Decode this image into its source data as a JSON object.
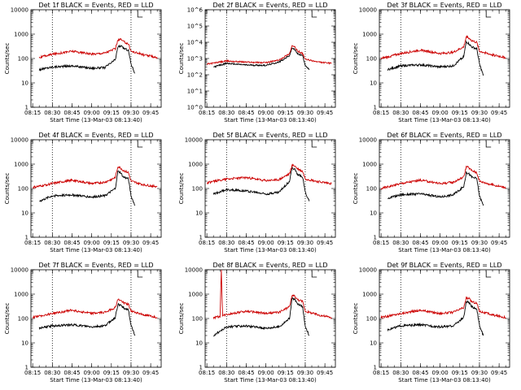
{
  "chart_data": [
    {
      "type": "line",
      "title": "Det 1f  BLACK = Events, RED = LLD",
      "xlabel": "",
      "ylabel": "Counts/sec",
      "yscale": "log",
      "ylim": [
        1,
        10000
      ],
      "yticks": [
        "1",
        "10",
        "100",
        "1000",
        "10000"
      ],
      "xticks": [
        "08:15",
        "08:30",
        "08:45",
        "09:00",
        "09:15",
        "09:30",
        "09:45"
      ],
      "xlim": [
        "08:13:40",
        "09:53"
      ],
      "markers": [
        "08:30",
        "09:30"
      ],
      "series": [
        {
          "color": "#000000",
          "x": [
            "08:20",
            "08:30",
            "08:45",
            "09:00",
            "09:10",
            "09:18",
            "09:20",
            "09:22",
            "09:24",
            "09:28",
            "09:30",
            "09:33"
          ],
          "values": [
            35,
            45,
            50,
            40,
            42,
            90,
            300,
            330,
            270,
            220,
            60,
            25
          ]
        },
        {
          "color": "#cc0000",
          "x": [
            "08:20",
            "08:30",
            "08:45",
            "09:00",
            "09:10",
            "09:18",
            "09:20",
            "09:22",
            "09:24",
            "09:28",
            "09:30",
            "09:40",
            "09:50"
          ],
          "values": [
            110,
            150,
            200,
            150,
            170,
            250,
            580,
            620,
            500,
            400,
            200,
            140,
            110
          ]
        }
      ]
    },
    {
      "type": "line",
      "title": "Det 2f  BLACK = Events, RED = LLD",
      "xlabel": "",
      "ylabel": "Counts/sec",
      "yscale": "log",
      "ylim": [
        1,
        1000000
      ],
      "yticks": [
        "10^0",
        "10^1",
        "10^2",
        "10^3",
        "10^4",
        "10^5",
        "10^6"
      ],
      "xticks": [
        "08:15",
        "08:30",
        "08:45",
        "09:00",
        "09:15",
        "09:30",
        "09:45"
      ],
      "xlim": [
        "08:13:40",
        "09:53"
      ],
      "markers": [
        "08:30",
        "09:30"
      ],
      "series": [
        {
          "color": "#000000",
          "x": [
            "08:20",
            "08:30",
            "08:45",
            "09:00",
            "09:10",
            "09:18",
            "09:20",
            "09:22",
            "09:24",
            "09:28",
            "09:30",
            "09:33"
          ],
          "values": [
            300,
            500,
            400,
            380,
            600,
            1500,
            4500,
            3500,
            2000,
            1500,
            400,
            200
          ]
        },
        {
          "color": "#cc0000",
          "x": [
            "08:15",
            "08:30",
            "08:45",
            "09:00",
            "09:10",
            "09:18",
            "09:20",
            "09:22",
            "09:24",
            "09:28",
            "09:30",
            "09:40",
            "09:50"
          ],
          "values": [
            450,
            700,
            600,
            550,
            800,
            2000,
            6000,
            5000,
            3000,
            2000,
            900,
            600,
            500
          ]
        }
      ]
    },
    {
      "type": "line",
      "title": "Det 3f  BLACK = Events, RED = LLD",
      "xlabel": "",
      "ylabel": "Counts/sec",
      "yscale": "log",
      "ylim": [
        1,
        10000
      ],
      "yticks": [
        "1",
        "10",
        "100",
        "1000",
        "10000"
      ],
      "xticks": [
        "08:15",
        "08:30",
        "08:45",
        "09:00",
        "09:15",
        "09:30",
        "09:45"
      ],
      "xlim": [
        "08:13:40",
        "09:53"
      ],
      "markers": [
        "08:30",
        "09:30"
      ],
      "series": [
        {
          "color": "#000000",
          "x": [
            "08:20",
            "08:30",
            "08:45",
            "09:00",
            "09:10",
            "09:18",
            "09:20",
            "09:22",
            "09:24",
            "09:28",
            "09:30",
            "09:33"
          ],
          "values": [
            35,
            50,
            55,
            45,
            50,
            120,
            500,
            400,
            300,
            250,
            60,
            20
          ]
        },
        {
          "color": "#cc0000",
          "x": [
            "08:15",
            "08:30",
            "08:45",
            "09:00",
            "09:10",
            "09:18",
            "09:20",
            "09:22",
            "09:24",
            "09:28",
            "09:30",
            "09:40",
            "09:50"
          ],
          "values": [
            100,
            160,
            220,
            160,
            180,
            300,
            800,
            700,
            550,
            450,
            200,
            140,
            110
          ]
        }
      ]
    },
    {
      "type": "line",
      "title": "Det 4f  BLACK = Events, RED = LLD",
      "xlabel": "",
      "ylabel": "Counts/sec",
      "yscale": "log",
      "ylim": [
        1,
        10000
      ],
      "yticks": [
        "1",
        "10",
        "100",
        "1000",
        "10000"
      ],
      "xticks": [
        "08:15",
        "08:30",
        "08:45",
        "09:00",
        "09:15",
        "09:30",
        "09:45"
      ],
      "xlim": [
        "08:13:40",
        "09:53"
      ],
      "markers": [
        "08:30",
        "09:30"
      ],
      "series": [
        {
          "color": "#000000",
          "x": [
            "08:20",
            "08:30",
            "08:45",
            "09:00",
            "09:10",
            "09:18",
            "09:20",
            "09:22",
            "09:24",
            "09:28",
            "09:30",
            "09:33"
          ],
          "values": [
            30,
            50,
            55,
            45,
            50,
            100,
            500,
            450,
            300,
            250,
            50,
            20
          ]
        },
        {
          "color": "#cc0000",
          "x": [
            "08:15",
            "08:30",
            "08:45",
            "09:00",
            "09:10",
            "09:18",
            "09:20",
            "09:22",
            "09:24",
            "09:28",
            "09:30",
            "09:40",
            "09:50"
          ],
          "values": [
            110,
            160,
            220,
            160,
            180,
            280,
            800,
            700,
            550,
            450,
            200,
            140,
            120
          ]
        }
      ]
    },
    {
      "type": "line",
      "title": "Det 5f  BLACK = Events, RED = LLD",
      "xlabel": "",
      "ylabel": "Counts/sec",
      "yscale": "log",
      "ylim": [
        1,
        10000
      ],
      "yticks": [
        "1",
        "10",
        "100",
        "1000",
        "10000"
      ],
      "xticks": [
        "08:15",
        "08:30",
        "08:45",
        "09:00",
        "09:15",
        "09:30",
        "09:45"
      ],
      "xlim": [
        "08:13:40",
        "09:53"
      ],
      "markers": [
        "08:30",
        "09:30"
      ],
      "series": [
        {
          "color": "#000000",
          "x": [
            "08:20",
            "08:30",
            "08:45",
            "09:00",
            "09:10",
            "09:18",
            "09:20",
            "09:22",
            "09:24",
            "09:28",
            "09:30",
            "09:33"
          ],
          "values": [
            60,
            90,
            80,
            60,
            70,
            200,
            700,
            600,
            400,
            300,
            70,
            30
          ]
        },
        {
          "color": "#cc0000",
          "x": [
            "08:15",
            "08:30",
            "08:45",
            "09:00",
            "09:10",
            "09:18",
            "09:20",
            "09:22",
            "09:24",
            "09:28",
            "09:30",
            "09:40",
            "09:50"
          ],
          "values": [
            170,
            250,
            280,
            210,
            230,
            400,
            900,
            850,
            650,
            500,
            250,
            190,
            160
          ]
        }
      ]
    },
    {
      "type": "line",
      "title": "Det 6f  BLACK = Events, RED = LLD",
      "xlabel": "",
      "ylabel": "Counts/sec",
      "yscale": "log",
      "ylim": [
        1,
        10000
      ],
      "yticks": [
        "1",
        "10",
        "100",
        "1000",
        "10000"
      ],
      "xticks": [
        "08:15",
        "08:30",
        "08:45",
        "09:00",
        "09:15",
        "09:30",
        "09:45"
      ],
      "xlim": [
        "08:13:40",
        "09:53"
      ],
      "markers": [
        "08:30",
        "09:30"
      ],
      "series": [
        {
          "color": "#000000",
          "x": [
            "08:20",
            "08:30",
            "08:45",
            "09:00",
            "09:10",
            "09:18",
            "09:20",
            "09:22",
            "09:24",
            "09:28",
            "09:30",
            "09:33"
          ],
          "values": [
            40,
            55,
            60,
            45,
            55,
            120,
            450,
            400,
            300,
            250,
            50,
            20
          ]
        },
        {
          "color": "#cc0000",
          "x": [
            "08:15",
            "08:30",
            "08:45",
            "09:00",
            "09:10",
            "09:18",
            "09:20",
            "09:22",
            "09:24",
            "09:28",
            "09:30",
            "09:40",
            "09:50"
          ],
          "values": [
            100,
            160,
            220,
            160,
            180,
            300,
            800,
            700,
            550,
            450,
            200,
            140,
            110
          ]
        }
      ]
    },
    {
      "type": "line",
      "title": "Det 7f  BLACK = Events, RED = LLD",
      "xlabel": "",
      "ylabel": "Counts/sec",
      "yscale": "log",
      "ylim": [
        1,
        10000
      ],
      "yticks": [
        "1",
        "10",
        "100",
        "1000",
        "10000"
      ],
      "xticks": [
        "08:15",
        "08:30",
        "08:45",
        "09:00",
        "09:15",
        "09:30",
        "09:45"
      ],
      "xlim": [
        "08:13:40",
        "09:53"
      ],
      "markers": [
        "08:30",
        "09:30"
      ],
      "series": [
        {
          "color": "#000000",
          "x": [
            "08:20",
            "08:30",
            "08:45",
            "09:00",
            "09:10",
            "09:18",
            "09:20",
            "09:22",
            "09:24",
            "09:28",
            "09:30",
            "09:33"
          ],
          "values": [
            40,
            50,
            55,
            45,
            50,
            110,
            380,
            350,
            280,
            230,
            50,
            20
          ]
        },
        {
          "color": "#cc0000",
          "x": [
            "08:15",
            "08:30",
            "08:45",
            "09:00",
            "09:10",
            "09:18",
            "09:20",
            "09:22",
            "09:24",
            "09:28",
            "09:30",
            "09:40",
            "09:50"
          ],
          "values": [
            110,
            160,
            220,
            160,
            180,
            280,
            600,
            550,
            450,
            380,
            200,
            140,
            110
          ]
        }
      ]
    },
    {
      "type": "line",
      "title": "Det 8f  BLACK = Events, RED = LLD",
      "xlabel": "",
      "ylabel": "Counts/sec",
      "yscale": "log",
      "ylim": [
        1,
        10000
      ],
      "yticks": [
        "1",
        "10",
        "100",
        "1000",
        "10000"
      ],
      "xticks": [
        "08:15",
        "08:30",
        "08:45",
        "09:00",
        "09:15",
        "09:30",
        "09:45"
      ],
      "xlim": [
        "08:13:40",
        "09:53"
      ],
      "markers": [
        "08:30",
        "09:30"
      ],
      "series": [
        {
          "color": "#000000",
          "x": [
            "08:20",
            "08:30",
            "08:45",
            "09:00",
            "09:10",
            "09:18",
            "09:20",
            "09:22",
            "09:24",
            "09:28",
            "09:30",
            "09:33"
          ],
          "values": [
            20,
            45,
            50,
            40,
            45,
            100,
            700,
            600,
            400,
            300,
            50,
            20
          ]
        },
        {
          "color": "#cc0000",
          "x": [
            "08:20",
            "08:25",
            "08:26",
            "08:27",
            "08:30",
            "08:45",
            "09:00",
            "09:10",
            "09:18",
            "09:20",
            "09:22",
            "09:24",
            "09:28",
            "09:30",
            "09:40",
            "09:50"
          ],
          "values": [
            110,
            120,
            9000,
            130,
            150,
            200,
            160,
            180,
            300,
            900,
            800,
            600,
            500,
            200,
            140,
            110
          ]
        }
      ]
    },
    {
      "type": "line",
      "title": "Det 9f  BLACK = Events, RED = LLD",
      "xlabel": "",
      "ylabel": "Counts/sec",
      "yscale": "log",
      "ylim": [
        1,
        10000
      ],
      "yticks": [
        "1",
        "10",
        "100",
        "1000",
        "10000"
      ],
      "xticks": [
        "08:15",
        "08:30",
        "08:45",
        "09:00",
        "09:15",
        "09:30",
        "09:45"
      ],
      "xlim": [
        "08:13:40",
        "09:53"
      ],
      "markers": [
        "08:30",
        "09:30"
      ],
      "series": [
        {
          "color": "#000000",
          "x": [
            "08:20",
            "08:30",
            "08:45",
            "09:00",
            "09:10",
            "09:18",
            "09:20",
            "09:22",
            "09:24",
            "09:28",
            "09:30",
            "09:33"
          ],
          "values": [
            35,
            50,
            55,
            45,
            50,
            110,
            500,
            450,
            300,
            250,
            50,
            20
          ]
        },
        {
          "color": "#cc0000",
          "x": [
            "08:15",
            "08:30",
            "08:45",
            "09:00",
            "09:10",
            "09:18",
            "09:20",
            "09:22",
            "09:24",
            "09:28",
            "09:30",
            "09:40",
            "09:50"
          ],
          "values": [
            110,
            160,
            220,
            160,
            180,
            280,
            700,
            650,
            500,
            420,
            200,
            140,
            110
          ]
        }
      ]
    }
  ],
  "start_time_label": "Start Time (13-Mar-03 08:13:40)"
}
